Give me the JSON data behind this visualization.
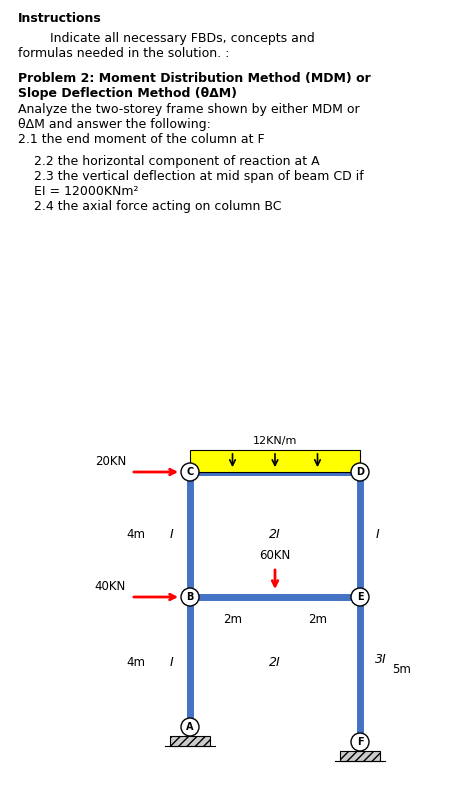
{
  "title_instructions": "Instructions",
  "text_line1": "        Indicate all necessary FBDs, concepts and",
  "text_line2": "formulas needed in the solution. :",
  "problem_title_line1": "Problem 2: Moment Distribution Method (MDM) or",
  "problem_title_line2": "Slope Deflection Method (θΔM)",
  "body_line1": "Analyze the two-storey frame shown by either MDM or",
  "body_line2": "θΔM and answer the following:",
  "body_line3": "2.1 the end moment of the column at F",
  "item1": "    2.2 the horizontal component of reaction at A",
  "item2": "    2.3 the vertical deflection at mid span of beam CD if",
  "item2b": "    EI = 12000KNm²",
  "item3": "    2.4 the axial force acting on column BC",
  "dist_load_label": "12KN/m",
  "load_20KN": "20KN",
  "load_40KN": "40KN",
  "load_60KN": "60KN",
  "label_2I_top": "2I",
  "label_2I_bot": "2I",
  "label_I_left_top": "I",
  "label_I_left_bot": "I",
  "label_I_right": "I",
  "label_3I": "3I",
  "label_4m_top": "4m",
  "label_4m_bot": "4m",
  "label_5m": "5m",
  "label_2m_left": "2m",
  "label_2m_right": "2m",
  "beam_color": "#4472C4",
  "dist_load_color": "#FFFF00",
  "arrow_color": "#FF0000",
  "bg_color": "#ffffff"
}
